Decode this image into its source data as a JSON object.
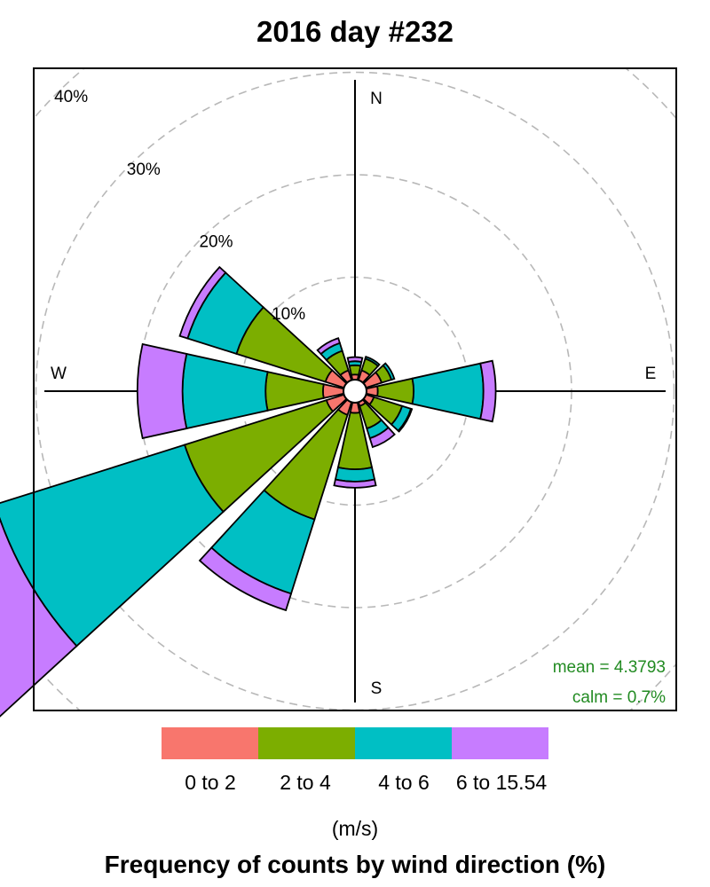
{
  "chart_data": {
    "type": "wind-rose",
    "title": "2016 day #232",
    "xlabel": "Frequency of counts by wind direction (%)",
    "legend_unit": "(m/s)",
    "compass": [
      "N",
      "E",
      "S",
      "W"
    ],
    "rings": [
      10,
      20,
      30,
      40
    ],
    "ring_labels": [
      "10%",
      "20%",
      "30%",
      "40%"
    ],
    "grid": true,
    "legend_position": "bottom",
    "bins": [
      {
        "label": "0 to 2",
        "color": "#F8766D"
      },
      {
        "label": "2 to 4",
        "color": "#7CAE00"
      },
      {
        "label": "4 to 6",
        "color": "#00BFC4"
      },
      {
        "label": "6 to 15.54",
        "color": "#C77CFF"
      }
    ],
    "directions": [
      {
        "dir": 0,
        "cum": [
          0.5,
          1.4,
          1.8,
          2.2
        ]
      },
      {
        "dir": 30,
        "cum": [
          1.0,
          2.2,
          2.4,
          2.4
        ]
      },
      {
        "dir": 60,
        "cum": [
          1.6,
          2.6,
          2.9,
          2.9
        ]
      },
      {
        "dir": 90,
        "cum": [
          1.1,
          4.6,
          11.4,
          12.6
        ]
      },
      {
        "dir": 120,
        "cum": [
          0.8,
          3.7,
          4.6,
          4.7
        ]
      },
      {
        "dir": 150,
        "cum": [
          0.4,
          2.7,
          3.7,
          4.6
        ]
      },
      {
        "dir": 180,
        "cum": [
          1.0,
          6.5,
          7.7,
          8.3
        ]
      },
      {
        "dir": 210,
        "cum": [
          1.3,
          12.0,
          19.6,
          21.3
        ]
      },
      {
        "dir": 240,
        "cum": [
          1.8,
          16.3,
          35.7,
          46.9
        ]
      },
      {
        "dir": 270,
        "cum": [
          2.0,
          7.6,
          15.7,
          20.1
        ]
      },
      {
        "dir": 300,
        "cum": [
          1.9,
          11.0,
          16.0,
          16.8
        ]
      },
      {
        "dir": 330,
        "cum": [
          1.0,
          3.0,
          3.8,
          4.3
        ]
      }
    ],
    "stats": {
      "mean": "mean = 4.3793",
      "calm": "calm = 0.7%"
    },
    "stats_color": "#228B22"
  }
}
